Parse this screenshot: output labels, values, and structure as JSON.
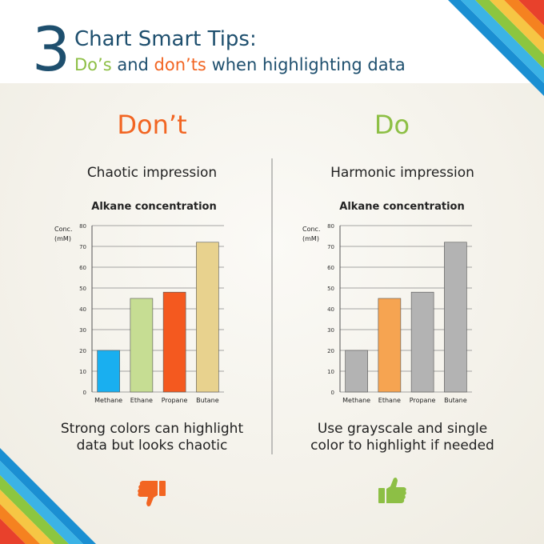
{
  "header": {
    "number": "3",
    "title": "Chart Smart Tips:",
    "subtitle": [
      "Do’s",
      "and",
      "don’ts",
      "when highlighting data"
    ]
  },
  "panels": [
    {
      "heading": "Don’t",
      "subheading": "Chaotic impression",
      "caption": "Strong colors can highlight data but looks chaotic"
    },
    {
      "heading": "Do",
      "subheading": "Harmonic impression",
      "caption": "Use grayscale and single color to highlight if needed"
    }
  ],
  "chart_data": [
    {
      "type": "bar",
      "title": "Alkane concentration",
      "ylabel": [
        "Conc.",
        "(mM)"
      ],
      "categories": [
        "Methane",
        "Ethane",
        "Propane",
        "Butane"
      ],
      "values": [
        20,
        45,
        48,
        72
      ],
      "colors": [
        "#19aff0",
        "#c6dd93",
        "#f4591f",
        "#e8d28e"
      ],
      "ylim": [
        0,
        80
      ],
      "yticks": [
        0,
        10,
        20,
        30,
        40,
        50,
        60,
        70,
        80
      ],
      "grid": true
    },
    {
      "type": "bar",
      "title": "Alkane concentration",
      "ylabel": [
        "Conc.",
        "(mM)"
      ],
      "categories": [
        "Methane",
        "Ethane",
        "Propane",
        "Butane"
      ],
      "values": [
        20,
        45,
        48,
        72
      ],
      "colors": [
        "#b3b3b3",
        "#f6a451",
        "#b3b3b3",
        "#b3b3b3"
      ],
      "ylim": [
        0,
        80
      ],
      "yticks": [
        0,
        10,
        20,
        30,
        40,
        50,
        60,
        70,
        80
      ],
      "grid": true
    }
  ]
}
